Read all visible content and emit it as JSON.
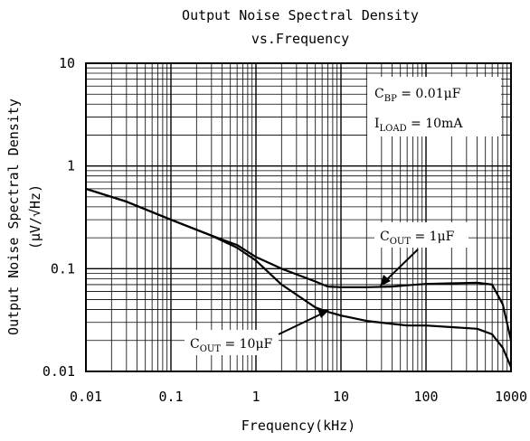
{
  "chart_data": {
    "type": "line",
    "title": "Output Noise Spectral Density",
    "subtitle": "vs.Frequency",
    "xlabel": "Frequency(kHz)",
    "ylabel": "Output Noise Spectral Density",
    "yunit": "(μV/√Hz)",
    "xscale": "log",
    "yscale": "log",
    "xlim": [
      0.01,
      1000
    ],
    "ylim": [
      0.01,
      10
    ],
    "grid": true,
    "x_ticks": [
      {
        "value": 0.01,
        "label": "0.01"
      },
      {
        "value": 0.1,
        "label": "0.1"
      },
      {
        "value": 1,
        "label": "1"
      },
      {
        "value": 10,
        "label": "10"
      },
      {
        "value": 100,
        "label": "100"
      },
      {
        "value": 1000,
        "label": "1000"
      }
    ],
    "y_ticks": [
      {
        "value": 10,
        "label": "10"
      },
      {
        "value": 1,
        "label": "1"
      },
      {
        "value": 0.1,
        "label": "0.1"
      },
      {
        "value": 0.01,
        "label": "0.01"
      }
    ],
    "conditions": {
      "cbp": {
        "main": "C",
        "sub": "BP",
        "rest": " = 0.01μF"
      },
      "iload": {
        "main": "I",
        "sub": "LOAD",
        "rest": " = 10mA"
      }
    },
    "series": [
      {
        "name": "C_OUT = 1μF",
        "label": {
          "main": "C",
          "sub": "OUT",
          "rest": " = 1μF"
        },
        "color": "#000000",
        "points": [
          [
            0.01,
            0.6
          ],
          [
            0.03,
            0.45
          ],
          [
            0.1,
            0.3
          ],
          [
            0.3,
            0.21
          ],
          [
            0.6,
            0.17
          ],
          [
            1,
            0.13
          ],
          [
            2,
            0.1
          ],
          [
            5,
            0.075
          ],
          [
            7,
            0.067
          ],
          [
            10,
            0.066
          ],
          [
            20,
            0.066
          ],
          [
            40,
            0.067
          ],
          [
            60,
            0.069
          ],
          [
            100,
            0.071
          ],
          [
            200,
            0.072
          ],
          [
            400,
            0.073
          ],
          [
            600,
            0.07
          ],
          [
            800,
            0.045
          ],
          [
            1000,
            0.02
          ]
        ]
      },
      {
        "name": "C_OUT = 10μF",
        "label": {
          "main": "C",
          "sub": "OUT",
          "rest": " = 10μF"
        },
        "color": "#000000",
        "points": [
          [
            0.01,
            0.6
          ],
          [
            0.03,
            0.45
          ],
          [
            0.1,
            0.3
          ],
          [
            0.3,
            0.21
          ],
          [
            0.6,
            0.16
          ],
          [
            1,
            0.12
          ],
          [
            2,
            0.07
          ],
          [
            5,
            0.042
          ],
          [
            7,
            0.038
          ],
          [
            10,
            0.035
          ],
          [
            20,
            0.031
          ],
          [
            40,
            0.029
          ],
          [
            60,
            0.028
          ],
          [
            100,
            0.028
          ],
          [
            200,
            0.027
          ],
          [
            400,
            0.026
          ],
          [
            600,
            0.023
          ],
          [
            800,
            0.017
          ],
          [
            1000,
            0.011
          ]
        ]
      }
    ]
  }
}
